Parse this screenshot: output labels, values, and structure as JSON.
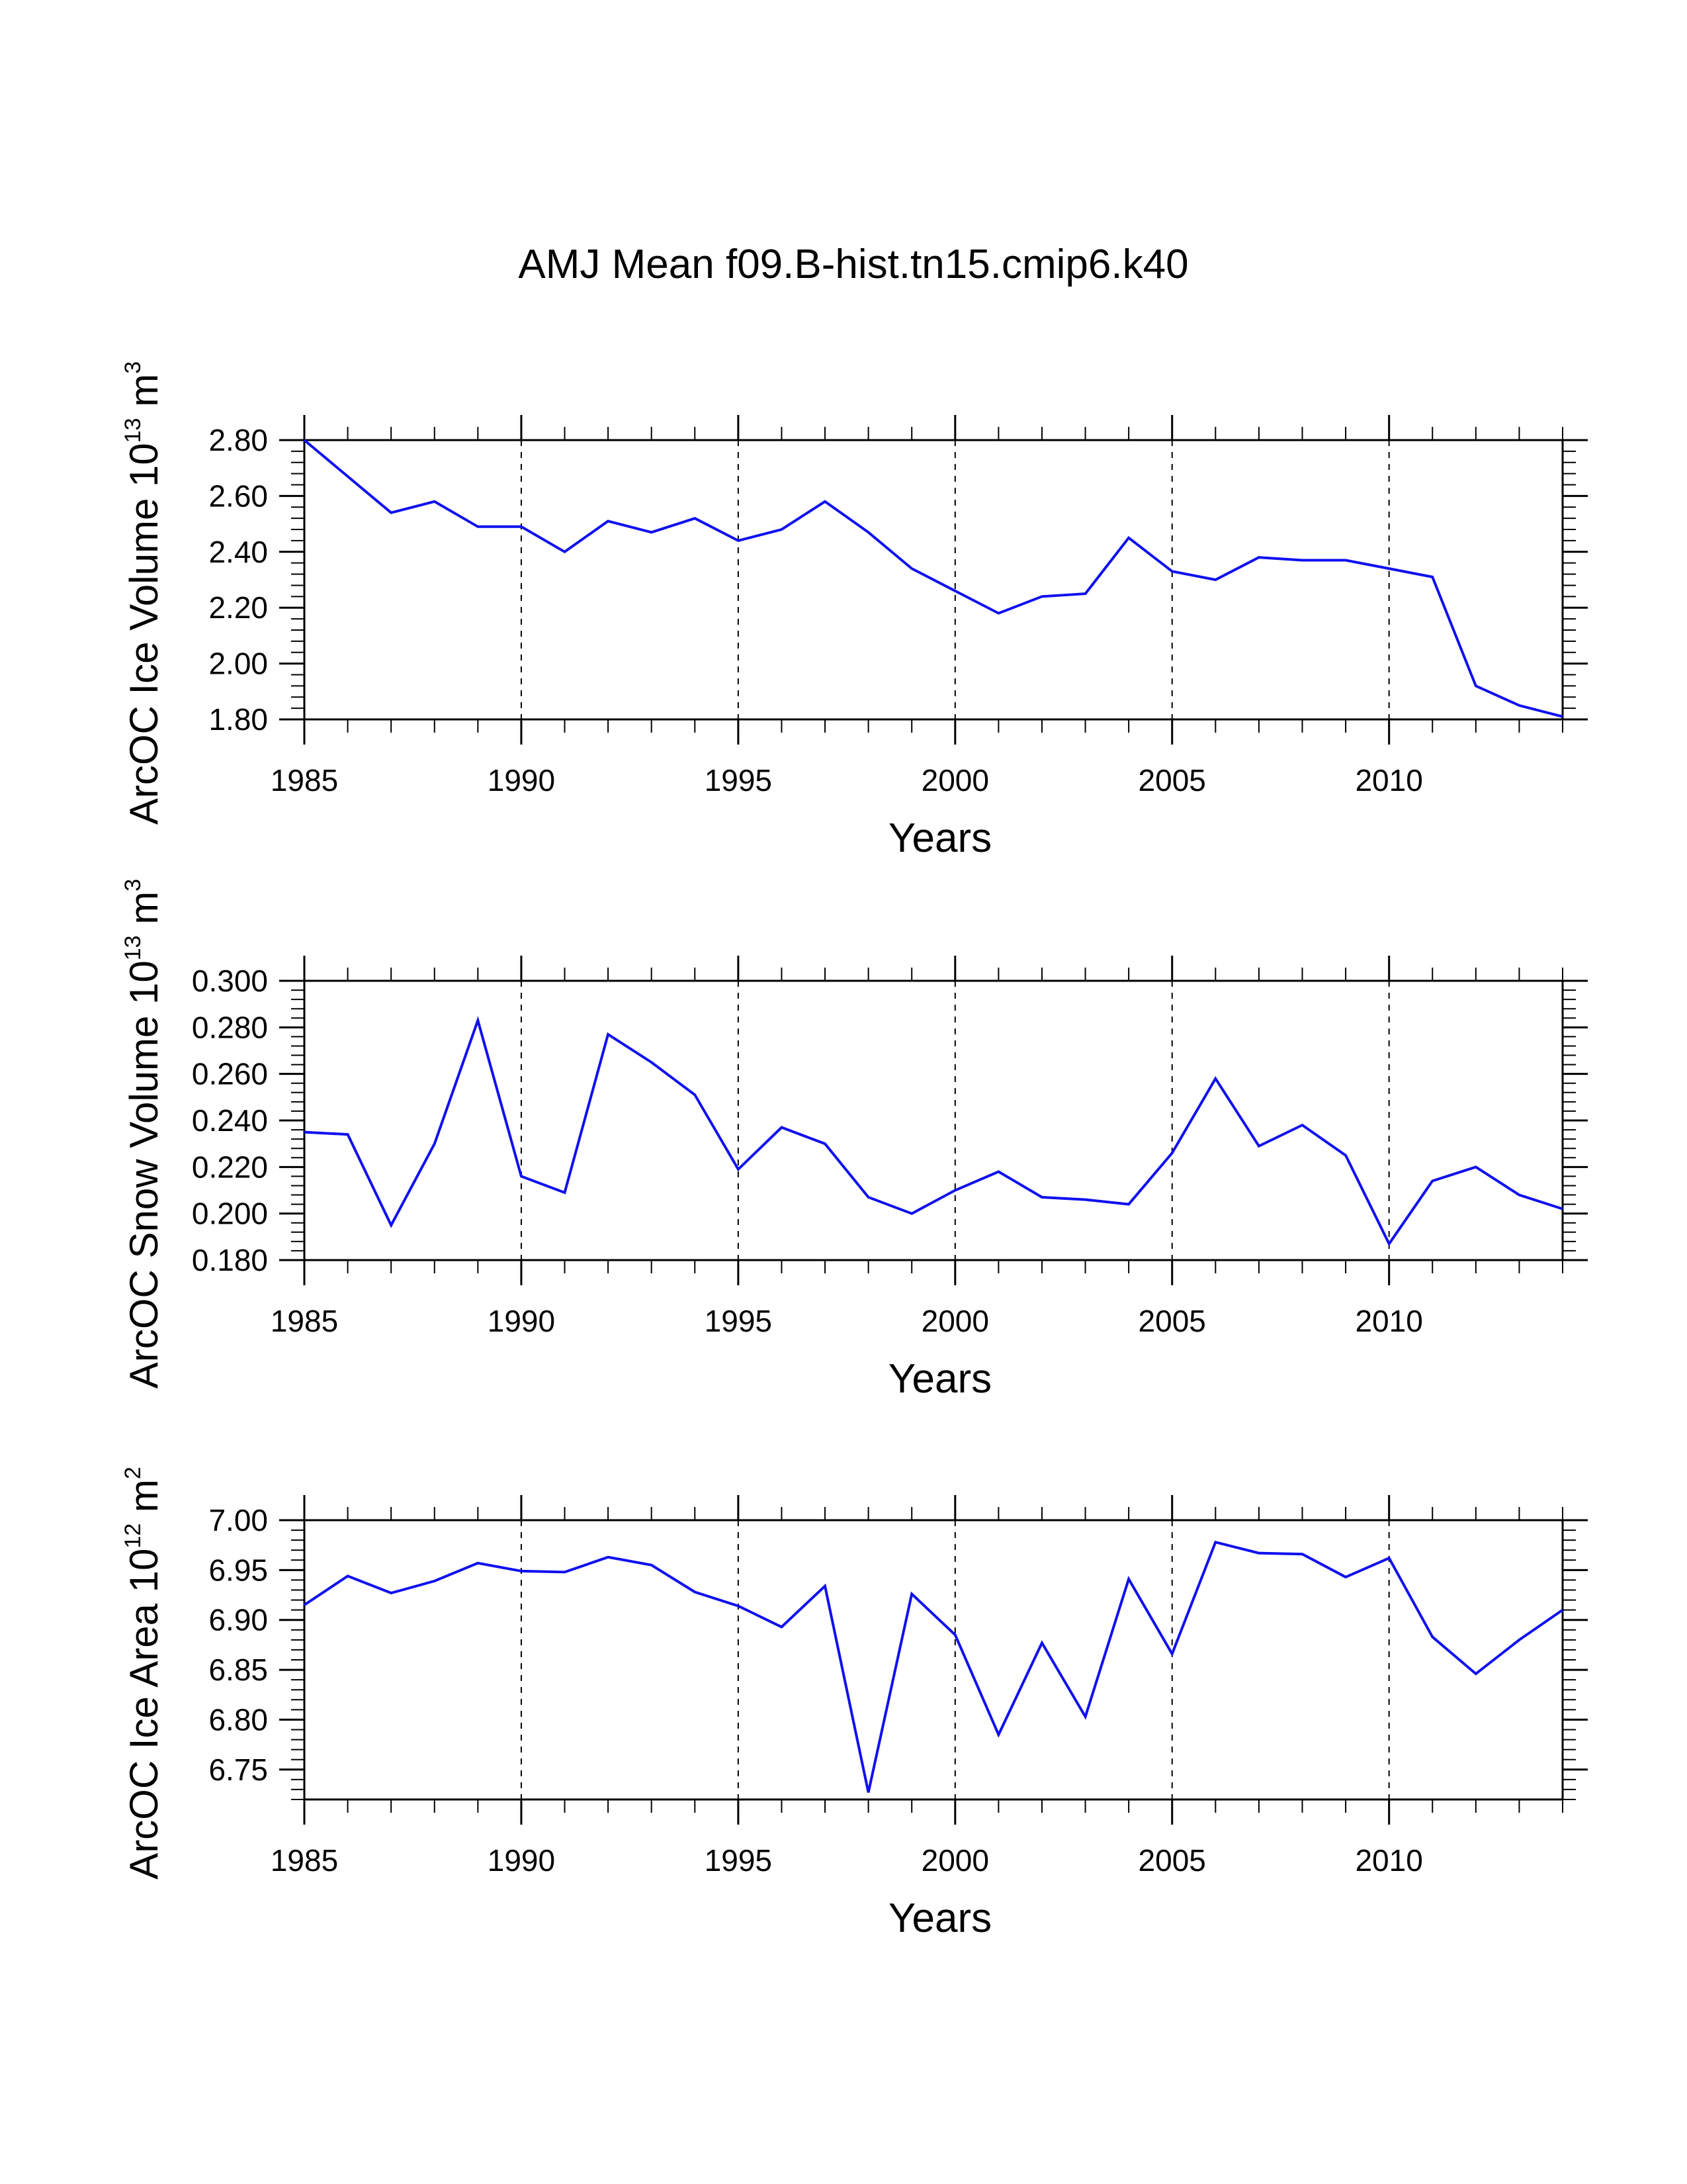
{
  "title": "AMJ Mean f09.B-hist.tn15.cmip6.k40",
  "line_color": "#1010f0",
  "chart_data": [
    {
      "type": "line",
      "xlabel": "Years",
      "ylabel_main": "ArcOC Ice Volume 10",
      "ylabel_exp": "13",
      "ylabel_unit": " m",
      "ylabel_unit_exp": "3",
      "xlim": [
        1985,
        2014
      ],
      "ylim": [
        1.8,
        2.8
      ],
      "yticks": [
        1.8,
        2.0,
        2.2,
        2.4,
        2.6,
        2.8
      ],
      "ytick_labels": [
        "1.80",
        "2.00",
        "2.20",
        "2.40",
        "2.60",
        "2.80"
      ],
      "ytick_minor": 0.04,
      "xticks": [
        1985,
        1990,
        1995,
        2000,
        2005,
        2010
      ],
      "xtick_labels": [
        "1985",
        "1990",
        "1995",
        "2000",
        "2005",
        "2010"
      ],
      "grid_x": [
        1990,
        1995,
        2000,
        2005,
        2010
      ],
      "x": [
        1985,
        1986,
        1987,
        1988,
        1989,
        1990,
        1991,
        1992,
        1993,
        1994,
        1995,
        1996,
        1997,
        1998,
        1999,
        2000,
        2001,
        2002,
        2003,
        2004,
        2005,
        2006,
        2007,
        2008,
        2009,
        2010,
        2011,
        2012,
        2013,
        2014
      ],
      "values": [
        2.8,
        2.67,
        2.54,
        2.58,
        2.49,
        2.49,
        2.4,
        2.51,
        2.47,
        2.52,
        2.44,
        2.48,
        2.58,
        2.47,
        2.34,
        2.26,
        2.18,
        2.24,
        2.25,
        2.45,
        2.33,
        2.3,
        2.38,
        2.37,
        2.37,
        2.34,
        2.31,
        1.92,
        1.85,
        1.81
      ]
    },
    {
      "type": "line",
      "xlabel": "Years",
      "ylabel_main": "ArcOC Snow Volume 10",
      "ylabel_exp": "13",
      "ylabel_unit": " m",
      "ylabel_unit_exp": "3",
      "xlim": [
        1985,
        2014
      ],
      "ylim": [
        0.18,
        0.3
      ],
      "yticks": [
        0.18,
        0.2,
        0.22,
        0.24,
        0.26,
        0.28,
        0.3
      ],
      "ytick_labels": [
        "0.180",
        "0.200",
        "0.220",
        "0.240",
        "0.260",
        "0.280",
        "0.300"
      ],
      "ytick_minor": 0.004,
      "xticks": [
        1985,
        1990,
        1995,
        2000,
        2005,
        2010
      ],
      "xtick_labels": [
        "1985",
        "1990",
        "1995",
        "2000",
        "2005",
        "2010"
      ],
      "grid_x": [
        1990,
        1995,
        2000,
        2005,
        2010
      ],
      "x": [
        1985,
        1986,
        1987,
        1988,
        1989,
        1990,
        1991,
        1992,
        1993,
        1994,
        1995,
        1996,
        1997,
        1998,
        1999,
        2000,
        2001,
        2002,
        2003,
        2004,
        2005,
        2006,
        2007,
        2008,
        2009,
        2010,
        2011,
        2012,
        2013,
        2014
      ],
      "values": [
        0.235,
        0.234,
        0.195,
        0.23,
        0.283,
        0.216,
        0.209,
        0.277,
        0.265,
        0.251,
        0.219,
        0.237,
        0.23,
        0.207,
        0.2,
        0.21,
        0.218,
        0.207,
        0.206,
        0.204,
        0.226,
        0.258,
        0.229,
        0.238,
        0.225,
        0.187,
        0.214,
        0.22,
        0.208,
        0.202
      ]
    },
    {
      "type": "line",
      "xlabel": "Years",
      "ylabel_main": "ArcOC Ice Area 10",
      "ylabel_exp": "12",
      "ylabel_unit": " m",
      "ylabel_unit_exp": "2",
      "xlim": [
        1985,
        2014
      ],
      "ylim": [
        6.72,
        7.0
      ],
      "yticks": [
        6.75,
        6.8,
        6.85,
        6.9,
        6.95,
        7.0
      ],
      "ytick_labels": [
        "6.75",
        "6.80",
        "6.85",
        "6.90",
        "6.95",
        "7.00"
      ],
      "ytick_minor": 0.01,
      "xticks": [
        1985,
        1990,
        1995,
        2000,
        2005,
        2010
      ],
      "xtick_labels": [
        "1985",
        "1990",
        "1995",
        "2000",
        "2005",
        "2010"
      ],
      "grid_x": [
        1990,
        1995,
        2000,
        2005,
        2010
      ],
      "x": [
        1985,
        1986,
        1987,
        1988,
        1989,
        1990,
        1991,
        1992,
        1993,
        1994,
        1995,
        1996,
        1997,
        1998,
        1999,
        2000,
        2001,
        2002,
        2003,
        2004,
        2005,
        2006,
        2007,
        2008,
        2009,
        2010,
        2011,
        2012,
        2013,
        2014
      ],
      "values": [
        6.915,
        6.944,
        6.927,
        6.939,
        6.957,
        6.949,
        6.948,
        6.963,
        6.955,
        6.928,
        6.914,
        6.893,
        6.934,
        6.727,
        6.926,
        6.885,
        6.785,
        6.877,
        6.803,
        6.941,
        6.866,
        6.978,
        6.967,
        6.966,
        6.943,
        6.962,
        6.883,
        6.846,
        6.88,
        6.91
      ]
    }
  ]
}
